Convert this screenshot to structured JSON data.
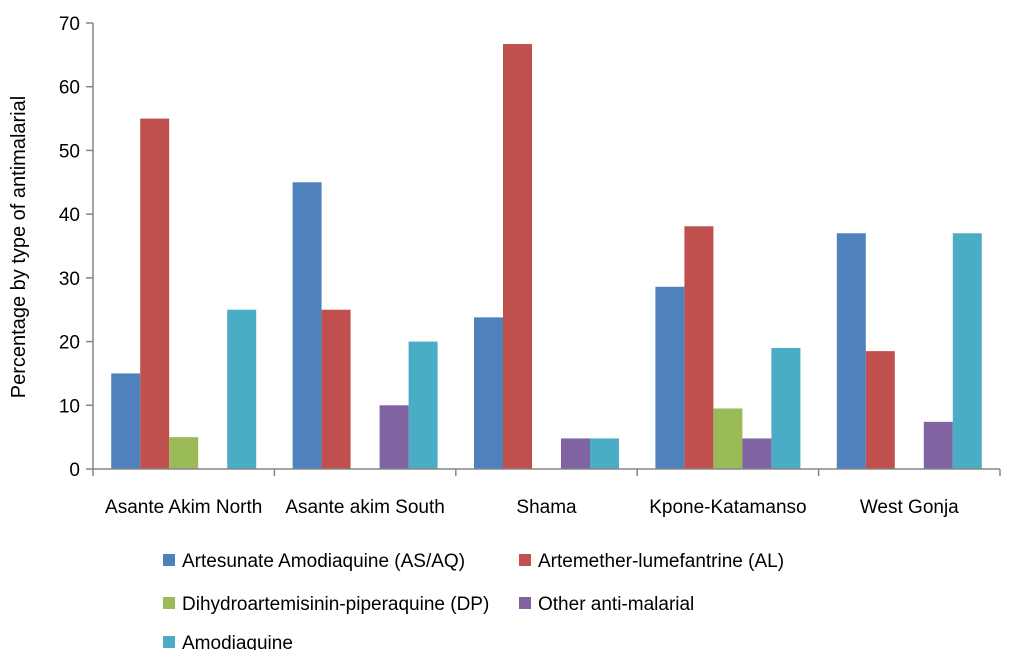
{
  "chart_data": {
    "type": "bar",
    "title": "",
    "xlabel": "",
    "ylabel": "Percentage by type of antimalarial",
    "ylim": [
      0,
      70
    ],
    "yticks": [
      0,
      10,
      20,
      30,
      40,
      50,
      60,
      70
    ],
    "grid": false,
    "legend_position": "bottom",
    "categories": [
      "Asante Akim North",
      "Asante akim South",
      "Shama",
      "Kpone-Katamanso",
      "West Gonja"
    ],
    "series": [
      {
        "name": "Artesunate Amodiaquine (AS/AQ)",
        "color": "#4F81BD",
        "values": [
          15,
          45,
          23.8,
          28.6,
          37
        ]
      },
      {
        "name": "Artemether-lumefantrine (AL)",
        "color": "#C0504D",
        "values": [
          55,
          25,
          66.7,
          38.1,
          18.5
        ]
      },
      {
        "name": "Dihydroartemisinin-piperaquine (DP)",
        "color": "#9BBB59",
        "values": [
          5,
          0,
          0,
          9.5,
          0
        ]
      },
      {
        "name": "Other anti-malarial",
        "color": "#8064A2",
        "values": [
          0,
          10,
          4.8,
          4.8,
          7.4
        ]
      },
      {
        "name": "Amodiaquine",
        "color": "#4BACC6",
        "values": [
          25,
          20,
          4.8,
          19,
          37
        ]
      }
    ]
  }
}
